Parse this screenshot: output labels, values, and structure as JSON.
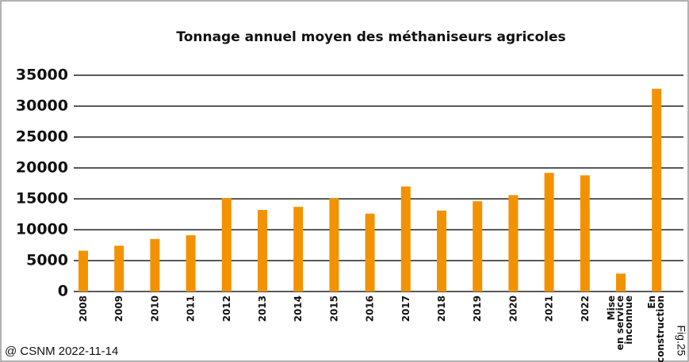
{
  "chart_data": {
    "type": "bar",
    "title": "Tonnage annuel moyen des méthaniseurs agricoles",
    "categories": [
      "2008",
      "2009",
      "2010",
      "2011",
      "2012",
      "2013",
      "2014",
      "2015",
      "2016",
      "2017",
      "2018",
      "2019",
      "2020",
      "2021",
      "2022",
      "Mise\nen service\ninconnue",
      "En\nconstruction"
    ],
    "values": [
      6600,
      7400,
      8500,
      9100,
      15100,
      13200,
      13700,
      15100,
      12600,
      17000,
      13100,
      14600,
      15600,
      19200,
      18800,
      2900,
      32800
    ],
    "color": "#f39200",
    "ylim": [
      0,
      35000
    ],
    "yticks": [
      0,
      5000,
      10000,
      15000,
      20000,
      25000,
      30000,
      35000
    ],
    "grid": true,
    "source": "@ CSNM 2022-11-14",
    "figure_label": "Fig.25"
  }
}
